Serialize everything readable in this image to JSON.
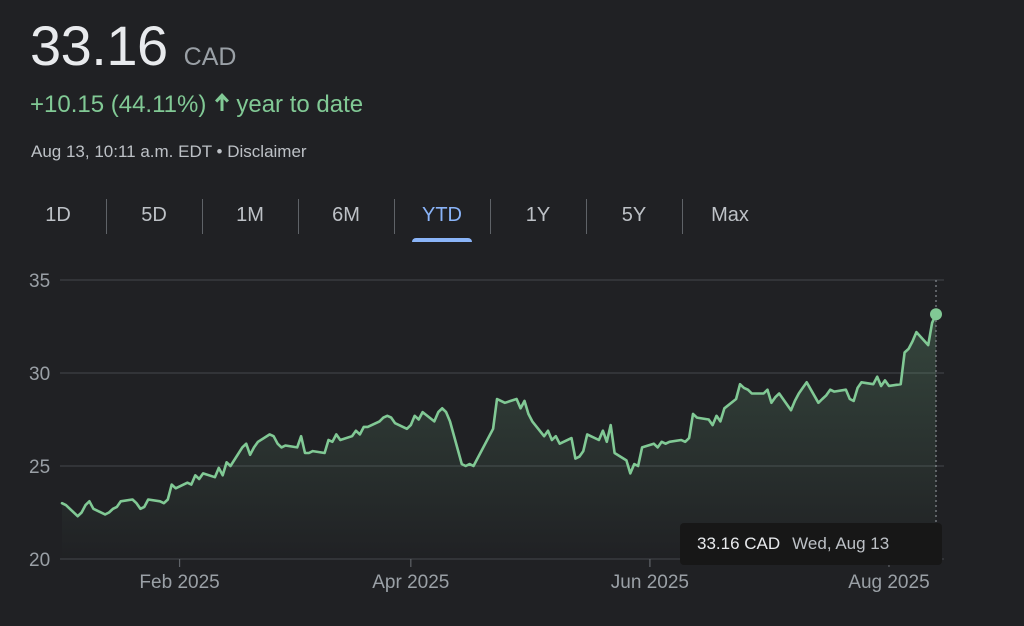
{
  "quote": {
    "price": "33.16",
    "currency": "CAD",
    "change": "+10.15 (44.11%)",
    "change_arrow": "↑",
    "period_label": "year to date",
    "timestamp": "Aug 13, 10:11 a.m. EDT",
    "separator": "•",
    "disclaimer": "Disclaimer",
    "positive_color": "#81c995"
  },
  "tabs": [
    {
      "label": "1D",
      "active": false
    },
    {
      "label": "5D",
      "active": false
    },
    {
      "label": "1M",
      "active": false
    },
    {
      "label": "6M",
      "active": false
    },
    {
      "label": "YTD",
      "active": true
    },
    {
      "label": "1Y",
      "active": false
    },
    {
      "label": "5Y",
      "active": false
    },
    {
      "label": "Max",
      "active": false
    }
  ],
  "tooltip": {
    "price": "33.16 CAD",
    "date": "Wed, Aug 13"
  },
  "chart_data": {
    "type": "area",
    "ylim": [
      20,
      35
    ],
    "y_ticks": [
      {
        "value": 35,
        "label": "35"
      },
      {
        "value": 30,
        "label": "30"
      },
      {
        "value": 25,
        "label": "25"
      },
      {
        "value": 20,
        "label": "20"
      }
    ],
    "x_ticks": [
      {
        "value": "2025-02-01",
        "label": "Feb 2025"
      },
      {
        "value": "2025-04-01",
        "label": "Apr 2025"
      },
      {
        "value": "2025-06-01",
        "label": "Jun 2025"
      },
      {
        "value": "2025-08-01",
        "label": "Aug 2025"
      }
    ],
    "xlim": [
      "2025-01-02",
      "2025-08-13"
    ],
    "grid": true,
    "line_color": "#81c995",
    "series": [
      {
        "points": [
          [
            "2025-01-02",
            23.0
          ],
          [
            "2025-01-03",
            22.9
          ],
          [
            "2025-01-06",
            22.3
          ],
          [
            "2025-01-07",
            22.5
          ],
          [
            "2025-01-08",
            22.9
          ],
          [
            "2025-01-09",
            23.1
          ],
          [
            "2025-01-10",
            22.7
          ],
          [
            "2025-01-13",
            22.4
          ],
          [
            "2025-01-14",
            22.5
          ],
          [
            "2025-01-15",
            22.7
          ],
          [
            "2025-01-16",
            22.8
          ],
          [
            "2025-01-17",
            23.1
          ],
          [
            "2025-01-20",
            23.2
          ],
          [
            "2025-01-21",
            23.0
          ],
          [
            "2025-01-22",
            22.7
          ],
          [
            "2025-01-23",
            22.8
          ],
          [
            "2025-01-24",
            23.2
          ],
          [
            "2025-01-27",
            23.1
          ],
          [
            "2025-01-28",
            23.0
          ],
          [
            "2025-01-29",
            23.2
          ],
          [
            "2025-01-30",
            24.0
          ],
          [
            "2025-01-31",
            23.8
          ],
          [
            "2025-02-03",
            24.1
          ],
          [
            "2025-02-04",
            24.0
          ],
          [
            "2025-02-05",
            24.5
          ],
          [
            "2025-02-06",
            24.3
          ],
          [
            "2025-02-07",
            24.6
          ],
          [
            "2025-02-10",
            24.4
          ],
          [
            "2025-02-11",
            24.9
          ],
          [
            "2025-02-12",
            24.5
          ],
          [
            "2025-02-13",
            25.2
          ],
          [
            "2025-02-14",
            25.0
          ],
          [
            "2025-02-17",
            26.0
          ],
          [
            "2025-02-18",
            26.2
          ],
          [
            "2025-02-19",
            25.6
          ],
          [
            "2025-02-20",
            26.0
          ],
          [
            "2025-02-21",
            26.3
          ],
          [
            "2025-02-24",
            26.7
          ],
          [
            "2025-02-25",
            26.6
          ],
          [
            "2025-02-26",
            26.2
          ],
          [
            "2025-02-27",
            26.0
          ],
          [
            "2025-02-28",
            26.1
          ],
          [
            "2025-03-03",
            26.0
          ],
          [
            "2025-03-04",
            26.6
          ],
          [
            "2025-03-05",
            25.7
          ],
          [
            "2025-03-06",
            25.7
          ],
          [
            "2025-03-07",
            25.8
          ],
          [
            "2025-03-10",
            25.7
          ],
          [
            "2025-03-11",
            26.4
          ],
          [
            "2025-03-12",
            26.3
          ],
          [
            "2025-03-13",
            26.7
          ],
          [
            "2025-03-14",
            26.4
          ],
          [
            "2025-03-17",
            26.6
          ],
          [
            "2025-03-18",
            26.9
          ],
          [
            "2025-03-19",
            26.7
          ],
          [
            "2025-03-20",
            27.1
          ],
          [
            "2025-03-21",
            27.1
          ],
          [
            "2025-03-24",
            27.4
          ],
          [
            "2025-03-25",
            27.6
          ],
          [
            "2025-03-26",
            27.7
          ],
          [
            "2025-03-27",
            27.6
          ],
          [
            "2025-03-28",
            27.3
          ],
          [
            "2025-03-31",
            27.0
          ],
          [
            "2025-04-01",
            27.2
          ],
          [
            "2025-04-02",
            27.7
          ],
          [
            "2025-04-03",
            27.5
          ],
          [
            "2025-04-04",
            27.9
          ],
          [
            "2025-04-07",
            27.4
          ],
          [
            "2025-04-08",
            27.9
          ],
          [
            "2025-04-09",
            28.1
          ],
          [
            "2025-04-10",
            27.9
          ],
          [
            "2025-04-11",
            27.4
          ],
          [
            "2025-04-14",
            25.1
          ],
          [
            "2025-04-15",
            25.0
          ],
          [
            "2025-04-16",
            25.1
          ],
          [
            "2025-04-17",
            25.0
          ],
          [
            "2025-04-21",
            26.6
          ],
          [
            "2025-04-22",
            27.0
          ],
          [
            "2025-04-23",
            28.6
          ],
          [
            "2025-04-24",
            28.5
          ],
          [
            "2025-04-25",
            28.4
          ],
          [
            "2025-04-28",
            28.6
          ],
          [
            "2025-04-29",
            28.1
          ],
          [
            "2025-04-30",
            28.5
          ],
          [
            "2025-05-01",
            27.8
          ],
          [
            "2025-05-02",
            27.4
          ],
          [
            "2025-05-05",
            26.6
          ],
          [
            "2025-05-06",
            26.9
          ],
          [
            "2025-05-07",
            26.4
          ],
          [
            "2025-05-08",
            26.6
          ],
          [
            "2025-05-09",
            26.2
          ],
          [
            "2025-05-12",
            26.5
          ],
          [
            "2025-05-13",
            25.4
          ],
          [
            "2025-05-14",
            25.5
          ],
          [
            "2025-05-15",
            25.8
          ],
          [
            "2025-05-16",
            26.7
          ],
          [
            "2025-05-19",
            26.4
          ],
          [
            "2025-05-20",
            26.9
          ],
          [
            "2025-05-21",
            26.3
          ],
          [
            "2025-05-22",
            27.2
          ],
          [
            "2025-05-23",
            25.7
          ],
          [
            "2025-05-26",
            25.3
          ],
          [
            "2025-05-27",
            24.6
          ],
          [
            "2025-05-28",
            25.1
          ],
          [
            "2025-05-29",
            25.0
          ],
          [
            "2025-05-30",
            26.0
          ],
          [
            "2025-06-02",
            26.2
          ],
          [
            "2025-06-03",
            26.0
          ],
          [
            "2025-06-04",
            26.3
          ],
          [
            "2025-06-05",
            26.2
          ],
          [
            "2025-06-06",
            26.3
          ],
          [
            "2025-06-09",
            26.4
          ],
          [
            "2025-06-10",
            26.3
          ],
          [
            "2025-06-11",
            26.5
          ],
          [
            "2025-06-12",
            27.8
          ],
          [
            "2025-06-13",
            27.6
          ],
          [
            "2025-06-16",
            27.5
          ],
          [
            "2025-06-17",
            27.2
          ],
          [
            "2025-06-18",
            27.7
          ],
          [
            "2025-06-19",
            27.4
          ],
          [
            "2025-06-20",
            28.1
          ],
          [
            "2025-06-23",
            28.6
          ],
          [
            "2025-06-24",
            29.4
          ],
          [
            "2025-06-25",
            29.2
          ],
          [
            "2025-06-26",
            29.1
          ],
          [
            "2025-06-27",
            28.9
          ],
          [
            "2025-06-30",
            28.9
          ],
          [
            "2025-07-01",
            29.1
          ],
          [
            "2025-07-02",
            28.4
          ],
          [
            "2025-07-03",
            28.7
          ],
          [
            "2025-07-04",
            28.9
          ],
          [
            "2025-07-07",
            28.0
          ],
          [
            "2025-07-08",
            28.5
          ],
          [
            "2025-07-09",
            28.9
          ],
          [
            "2025-07-10",
            29.2
          ],
          [
            "2025-07-11",
            29.5
          ],
          [
            "2025-07-14",
            28.4
          ],
          [
            "2025-07-15",
            28.6
          ],
          [
            "2025-07-16",
            28.8
          ],
          [
            "2025-07-17",
            29.1
          ],
          [
            "2025-07-18",
            29.0
          ],
          [
            "2025-07-21",
            29.1
          ],
          [
            "2025-07-22",
            28.6
          ],
          [
            "2025-07-23",
            28.5
          ],
          [
            "2025-07-24",
            29.2
          ],
          [
            "2025-07-25",
            29.5
          ],
          [
            "2025-07-28",
            29.4
          ],
          [
            "2025-07-29",
            29.8
          ],
          [
            "2025-07-30",
            29.3
          ],
          [
            "2025-07-31",
            29.6
          ],
          [
            "2025-08-01",
            29.3
          ],
          [
            "2025-08-04",
            29.4
          ],
          [
            "2025-08-05",
            31.1
          ],
          [
            "2025-08-06",
            31.3
          ],
          [
            "2025-08-07",
            31.7
          ],
          [
            "2025-08-08",
            32.2
          ],
          [
            "2025-08-11",
            31.5
          ],
          [
            "2025-08-12",
            32.7
          ],
          [
            "2025-08-13",
            33.16
          ]
        ]
      }
    ]
  }
}
